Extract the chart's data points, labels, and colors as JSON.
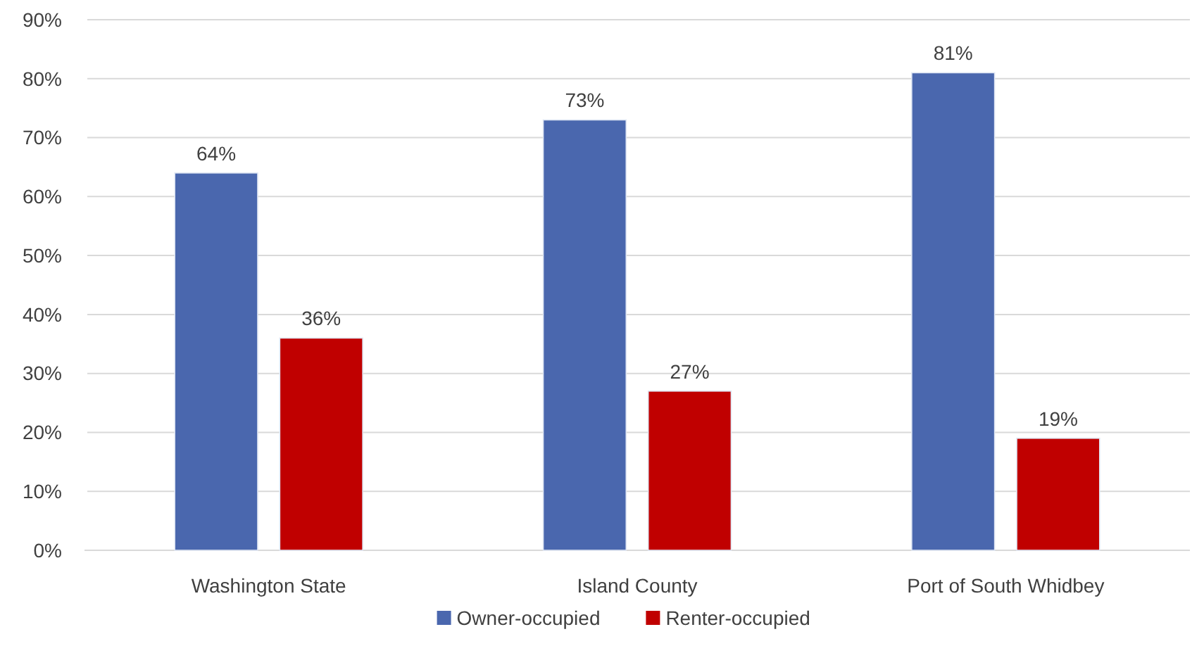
{
  "chart_data": {
    "type": "bar",
    "categories": [
      "Washington State",
      "Island County",
      "Port of South Whidbey"
    ],
    "series": [
      {
        "name": "Owner-occupied",
        "color": "#4a67ae",
        "values": [
          64,
          73,
          81
        ],
        "value_labels": [
          "64%",
          "73%",
          "81%"
        ]
      },
      {
        "name": "Renter-occupied",
        "color": "#c00000",
        "values": [
          36,
          27,
          19
        ],
        "value_labels": [
          "36%",
          "27%",
          "19%"
        ]
      }
    ],
    "ylim": [
      0,
      90
    ],
    "yticks": [
      {
        "value": 0,
        "label": "0%"
      },
      {
        "value": 10,
        "label": "10%"
      },
      {
        "value": 20,
        "label": "20%"
      },
      {
        "value": 30,
        "label": "30%"
      },
      {
        "value": 40,
        "label": "40%"
      },
      {
        "value": 50,
        "label": "50%"
      },
      {
        "value": 60,
        "label": "60%"
      },
      {
        "value": 70,
        "label": "70%"
      },
      {
        "value": 80,
        "label": "80%"
      },
      {
        "value": 90,
        "label": "90%"
      }
    ],
    "grid": "y",
    "legend": "bottom"
  }
}
